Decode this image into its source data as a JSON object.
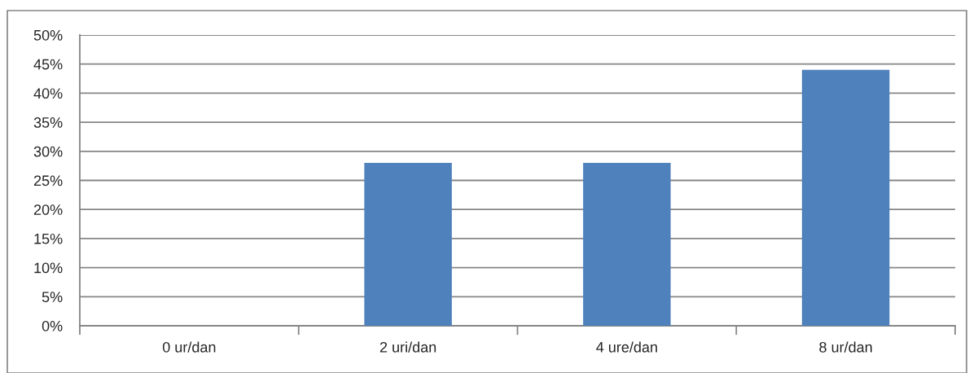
{
  "chart_data": {
    "type": "bar",
    "categories": [
      "0 ur/dan",
      "2 uri/dan",
      "4 ure/dan",
      "8 ur/dan"
    ],
    "values": [
      0,
      28,
      28,
      44
    ],
    "color": "#4f81bd",
    "ylim": [
      0,
      50
    ],
    "yticks": [
      {
        "value": 0,
        "label": "0%"
      },
      {
        "value": 5,
        "label": "5%"
      },
      {
        "value": 10,
        "label": "10%"
      },
      {
        "value": 15,
        "label": "15%"
      },
      {
        "value": 20,
        "label": "20%"
      },
      {
        "value": 25,
        "label": "25%"
      },
      {
        "value": 30,
        "label": "30%"
      },
      {
        "value": 35,
        "label": "35%"
      },
      {
        "value": 40,
        "label": "40%"
      },
      {
        "value": 45,
        "label": "45%"
      },
      {
        "value": 50,
        "label": "50%"
      }
    ],
    "grid": "y",
    "legend": false
  }
}
